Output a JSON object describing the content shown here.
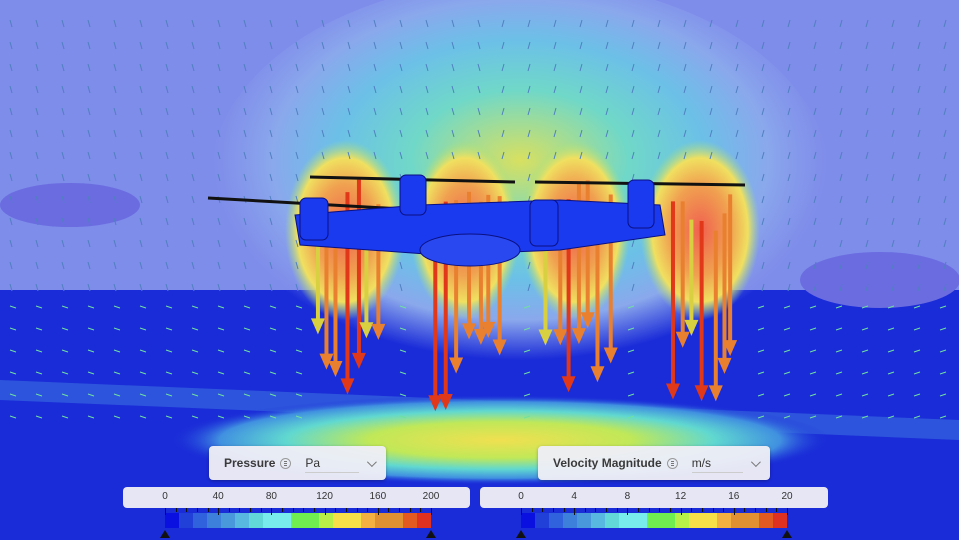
{
  "pressure": {
    "label": "Pressure",
    "info_icon": "info-icon",
    "unit": "Pa",
    "ticks": [
      "0",
      "40",
      "80",
      "120",
      "160",
      "200"
    ],
    "range": [
      0,
      200
    ]
  },
  "velocity": {
    "label": "Velocity Magnitude",
    "info_icon": "info-icon",
    "unit": "m/s",
    "ticks": [
      "0",
      "4",
      "8",
      "12",
      "16",
      "20"
    ],
    "range": [
      0,
      20
    ]
  },
  "colormap": [
    "#0a10e0",
    "#2040d8",
    "#2f62dc",
    "#3c80dc",
    "#4a98dc",
    "#58b8e0",
    "#62d8d8",
    "#78ecec",
    "#70ee50",
    "#b8f048",
    "#f8e048",
    "#f4b040",
    "#e09030",
    "#e25a20",
    "#e03020"
  ]
}
